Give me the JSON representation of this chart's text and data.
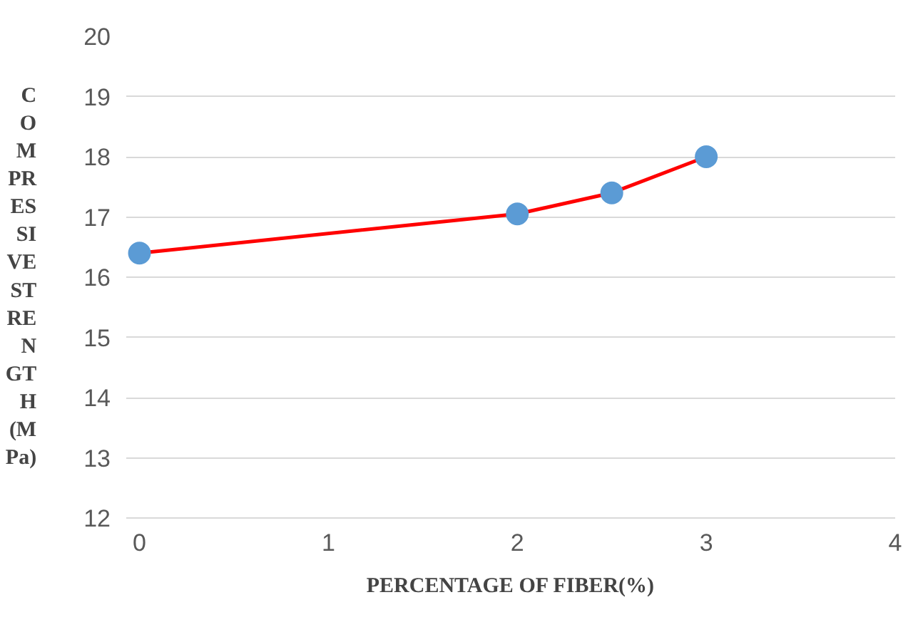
{
  "chart_data": {
    "type": "line",
    "xlabel": "PERCENTAGE OF FIBER(%)",
    "ylabel": "C\nO\nM\nPR\nES\nSI\nVE\nST\nRE\nN\nGT\nH\n(M\nPa)",
    "x": [
      0,
      2,
      2.5,
      3
    ],
    "series": [
      {
        "color": "#ff0000",
        "values": [
          16.4,
          17.05,
          17.4,
          18.0
        ]
      }
    ],
    "marker": "circle",
    "xlim": [
      -0.07,
      4
    ],
    "xticks": [
      0,
      1,
      2,
      3,
      4
    ],
    "ylim": [
      12,
      20
    ],
    "yticks": [
      12,
      13,
      14,
      15,
      16,
      17,
      18,
      19,
      20
    ],
    "grid": "y"
  }
}
